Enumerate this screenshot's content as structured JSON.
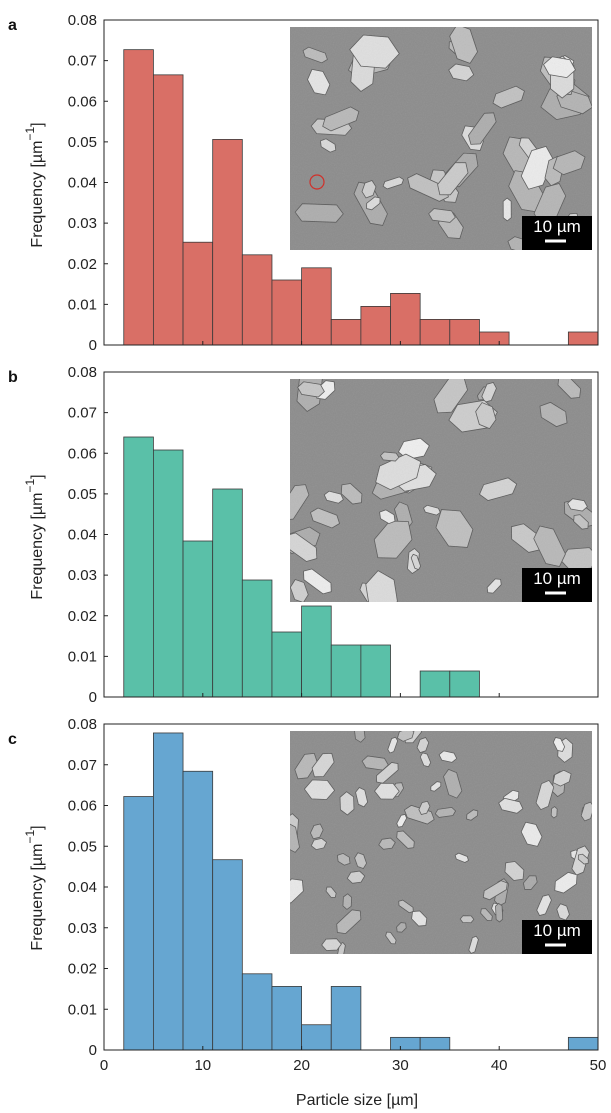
{
  "figure": {
    "xlabel": "Particle size [µm]"
  },
  "chart_data": [
    {
      "type": "bar",
      "panel": "a",
      "ylabel_main": "Frequency [µm",
      "ylabel_sup": "−1",
      "ylabel_close": "]",
      "xlim": [
        0,
        50
      ],
      "ylim": [
        0,
        0.08
      ],
      "yticks": [
        "0",
        "0.01",
        "0.02",
        "0.03",
        "0.04",
        "0.05",
        "0.06",
        "0.07",
        "0.08"
      ],
      "xticks": [
        "0",
        "10",
        "20",
        "30",
        "40",
        "50"
      ],
      "bin_edges": [
        2,
        5,
        8,
        11,
        14,
        17,
        20,
        23,
        26,
        29,
        32,
        35,
        38,
        41,
        44,
        47,
        50
      ],
      "values": [
        0.0727,
        0.0665,
        0.0253,
        0.0506,
        0.0222,
        0.016,
        0.019,
        0.0063,
        0.0095,
        0.0127,
        0.0063,
        0.0063,
        0.0032,
        0,
        0,
        0.0032
      ],
      "color": "#d96f66",
      "edge_color": "#3a3a3a",
      "inset": {
        "scale_bar": "10 µm",
        "description": "SEM micrograph",
        "has_marker_circle": true
      }
    },
    {
      "type": "bar",
      "panel": "b",
      "ylabel_main": "Frequency [µm",
      "ylabel_sup": "−1",
      "ylabel_close": "]",
      "xlim": [
        0,
        50
      ],
      "ylim": [
        0,
        0.08
      ],
      "yticks": [
        "0",
        "0.01",
        "0.02",
        "0.03",
        "0.04",
        "0.05",
        "0.06",
        "0.07",
        "0.08"
      ],
      "xticks": [
        "0",
        "10",
        "20",
        "30",
        "40",
        "50"
      ],
      "bin_edges": [
        2,
        5,
        8,
        11,
        14,
        17,
        20,
        23,
        26,
        29,
        32,
        35,
        38,
        41,
        44,
        47,
        50
      ],
      "values": [
        0.064,
        0.0608,
        0.0384,
        0.0512,
        0.0288,
        0.016,
        0.0224,
        0.0128,
        0.0128,
        0,
        0.0064,
        0.0064,
        0,
        0,
        0,
        0
      ],
      "color": "#5ac0a8",
      "edge_color": "#3a3a3a",
      "inset": {
        "scale_bar": "10 µm",
        "description": "SEM micrograph",
        "has_marker_circle": false
      }
    },
    {
      "type": "bar",
      "panel": "c",
      "ylabel_main": "Frequency [µm",
      "ylabel_sup": "−1",
      "ylabel_close": "]",
      "xlim": [
        0,
        50
      ],
      "ylim": [
        0,
        0.08
      ],
      "yticks": [
        "0",
        "0.01",
        "0.02",
        "0.03",
        "0.04",
        "0.05",
        "0.06",
        "0.07",
        "0.08"
      ],
      "xticks": [
        "0",
        "10",
        "20",
        "30",
        "40",
        "50"
      ],
      "bin_edges": [
        2,
        5,
        8,
        11,
        14,
        17,
        20,
        23,
        26,
        29,
        32,
        35,
        38,
        41,
        44,
        47,
        50
      ],
      "values": [
        0.0622,
        0.0778,
        0.0684,
        0.0467,
        0.0187,
        0.0156,
        0.0062,
        0.0156,
        0,
        0.0031,
        0.0031,
        0,
        0,
        0,
        0,
        0.0031
      ],
      "color": "#66a6d1",
      "edge_color": "#3a3a3a",
      "inset": {
        "scale_bar": "10 µm",
        "description": "SEM micrograph",
        "has_marker_circle": false
      }
    }
  ]
}
